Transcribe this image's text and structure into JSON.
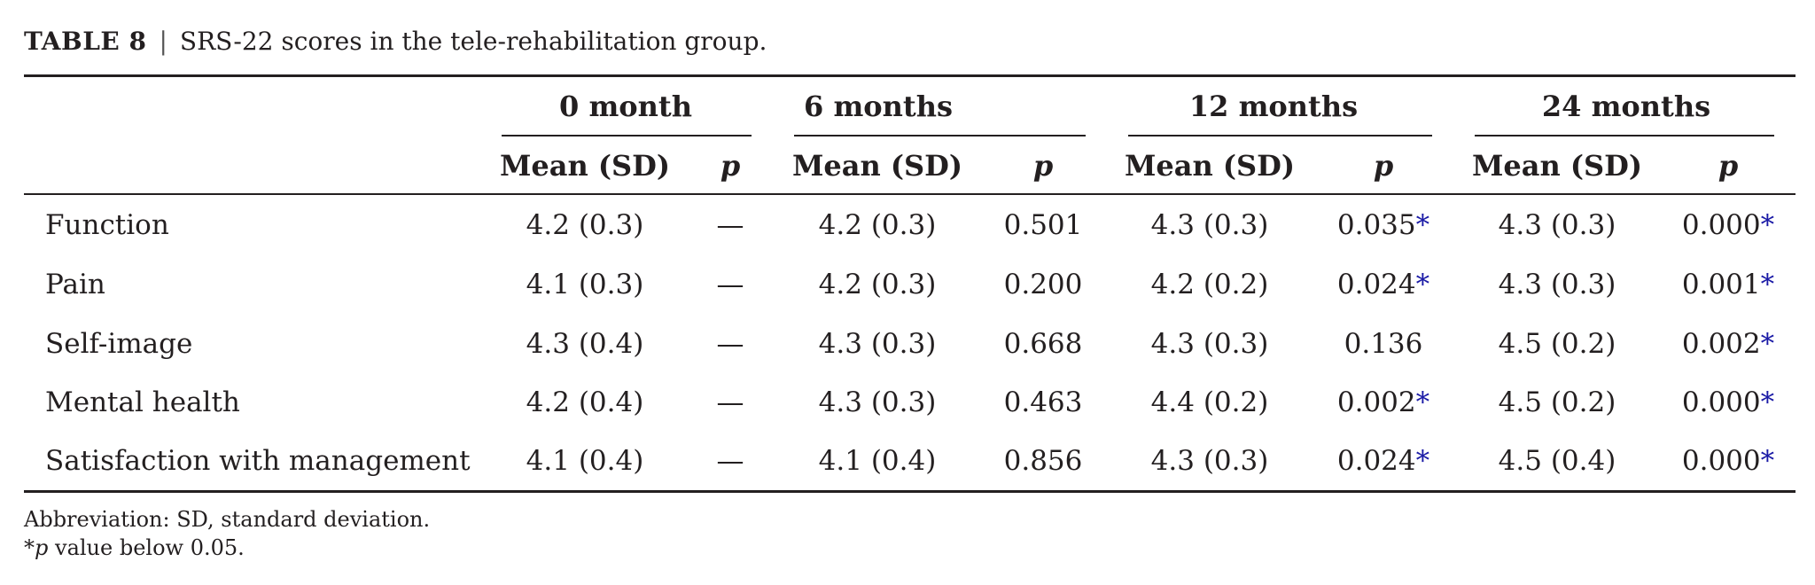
{
  "caption": {
    "label": "TABLE 8",
    "separator": "|",
    "text": "SRS-22 scores in the tele-rehabilitation group."
  },
  "groups": [
    "0 month",
    "6 months",
    "12 months",
    "24 months"
  ],
  "subheaders": {
    "mean": "Mean (SD)",
    "p": "p"
  },
  "rows": [
    {
      "label": "Function",
      "cells": [
        {
          "mean": "4.2 (0.3)",
          "p": "—",
          "star": ""
        },
        {
          "mean": "4.2 (0.3)",
          "p": "0.501",
          "star": ""
        },
        {
          "mean": "4.3 (0.3)",
          "p": "0.035",
          "star": "*"
        },
        {
          "mean": "4.3 (0.3)",
          "p": "0.000",
          "star": "*"
        }
      ]
    },
    {
      "label": "Pain",
      "cells": [
        {
          "mean": "4.1 (0.3)",
          "p": "—",
          "star": ""
        },
        {
          "mean": "4.2 (0.3)",
          "p": "0.200",
          "star": ""
        },
        {
          "mean": "4.2 (0.2)",
          "p": "0.024",
          "star": "*"
        },
        {
          "mean": "4.3 (0.3)",
          "p": "0.001",
          "star": "*"
        }
      ]
    },
    {
      "label": "Self-image",
      "cells": [
        {
          "mean": "4.3 (0.4)",
          "p": "—",
          "star": ""
        },
        {
          "mean": "4.3 (0.3)",
          "p": "0.668",
          "star": ""
        },
        {
          "mean": "4.3 (0.3)",
          "p": "0.136",
          "star": ""
        },
        {
          "mean": "4.5 (0.2)",
          "p": "0.002",
          "star": "*"
        }
      ]
    },
    {
      "label": "Mental health",
      "cells": [
        {
          "mean": "4.2 (0.4)",
          "p": "—",
          "star": ""
        },
        {
          "mean": "4.3 (0.3)",
          "p": "0.463",
          "star": ""
        },
        {
          "mean": "4.4 (0.2)",
          "p": "0.002",
          "star": "*"
        },
        {
          "mean": "4.5 (0.2)",
          "p": "0.000",
          "star": "*"
        }
      ]
    },
    {
      "label": "Satisfaction with management",
      "cells": [
        {
          "mean": "4.1 (0.4)",
          "p": "—",
          "star": ""
        },
        {
          "mean": "4.1 (0.4)",
          "p": "0.856",
          "star": ""
        },
        {
          "mean": "4.3 (0.3)",
          "p": "0.024",
          "star": "*"
        },
        {
          "mean": "4.5 (0.4)",
          "p": "0.000",
          "star": "*"
        }
      ]
    }
  ],
  "footnotes": {
    "abbreviation": "Abbreviation: SD, standard deviation.",
    "significance": {
      "star": "*",
      "p": "p",
      "text": " value below 0.05."
    }
  },
  "colors": {
    "text": "#231f20",
    "significance_star": "#1a1aa6"
  }
}
